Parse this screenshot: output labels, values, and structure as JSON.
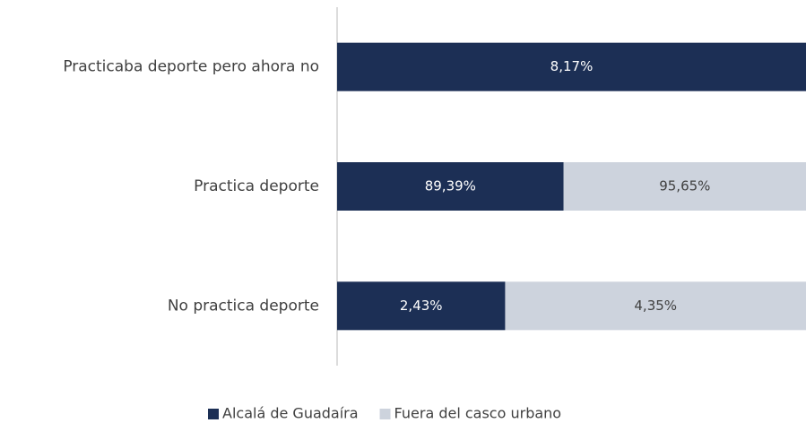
{
  "chart_data": {
    "type": "bar",
    "orientation": "horizontal",
    "stack": "percent",
    "categories": [
      "Practicaba deporte pero ahora no",
      "Practica deporte",
      "No practica deporte"
    ],
    "series": [
      {
        "name": "Alcalá de Guadaíra",
        "color": "#1c2f55",
        "values": [
          8.17,
          89.39,
          2.43
        ],
        "value_labels": [
          "8,17%",
          "89,39%",
          "2,43%"
        ],
        "label_color": "#ffffff"
      },
      {
        "name": "Fuera del casco urbano",
        "color": "#cdd3dd",
        "values": [
          null,
          95.65,
          4.35
        ],
        "value_labels": [
          null,
          "95,65%",
          "4,35%"
        ],
        "label_color": "#404040"
      }
    ],
    "legend": "bottom"
  }
}
